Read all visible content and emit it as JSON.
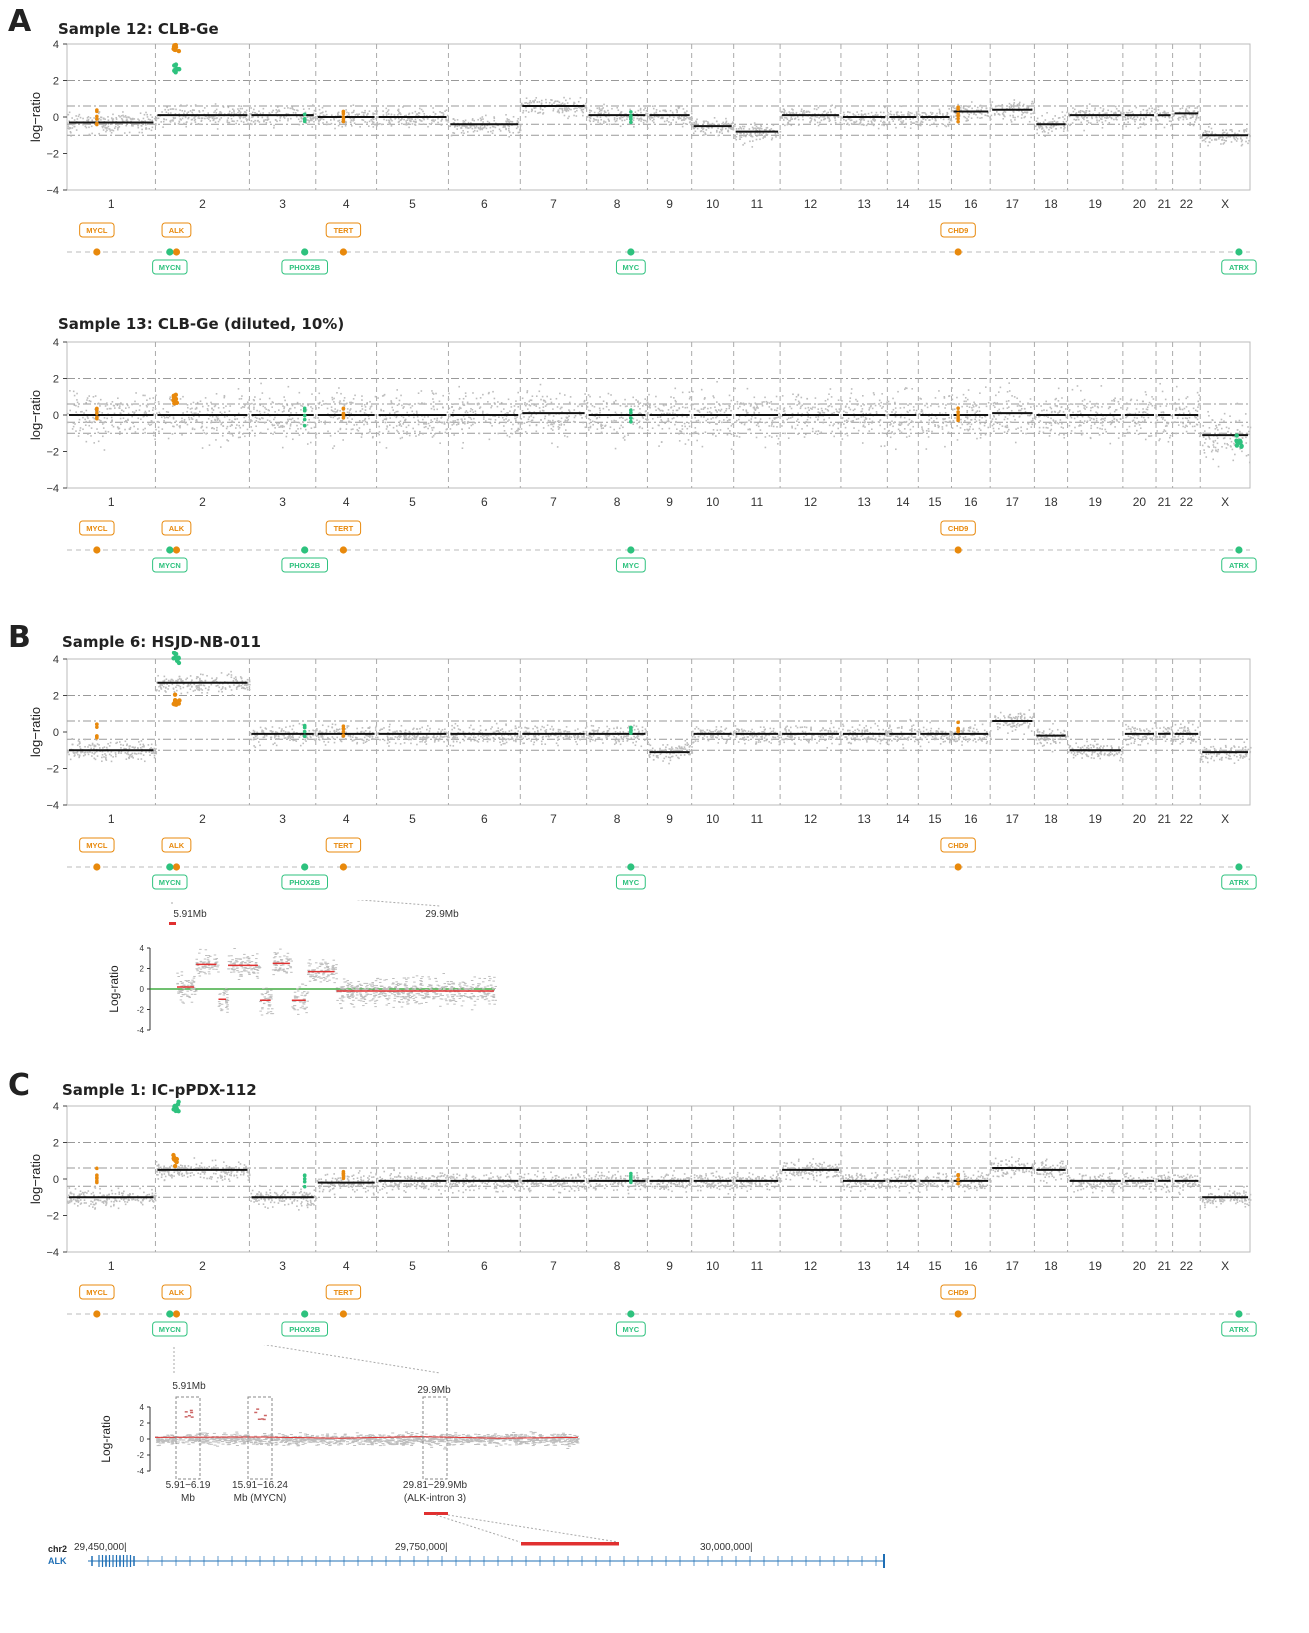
{
  "panels": {
    "a": "A",
    "b": "B",
    "c": "C"
  },
  "colors": {
    "amp": "#e8890c",
    "del": "#2ec27e",
    "point": "#bdbdbd",
    "segment": "#111111",
    "zoom_segment": "#e03030",
    "baseline": "#1a9a1a"
  },
  "genes": [
    {
      "name": "MYCL",
      "chrom": "1",
      "pos_mb": 40.4,
      "color": "orange"
    },
    {
      "name": "ALK",
      "chrom": "2",
      "pos_mb": 29.9,
      "color": "orange"
    },
    {
      "name": "MYCN",
      "chrom": "2",
      "pos_mb": 15.9,
      "color": "green"
    },
    {
      "name": "PHOX2B",
      "chrom": "4",
      "pos_mb": 41.7,
      "color": "green"
    },
    {
      "name": "TERT",
      "chrom": "5",
      "pos_mb": 1.3,
      "color": "orange"
    },
    {
      "name": "MYC",
      "chrom": "8",
      "pos_mb": 127.7,
      "color": "green"
    },
    {
      "name": "CHD9",
      "chrom": "16",
      "pos_mb": 53.1,
      "color": "orange"
    },
    {
      "name": "ATRX",
      "chrom": "X",
      "pos_mb": 77.5,
      "color": "green"
    }
  ],
  "chart_data": [
    {
      "type": "scatter",
      "title": "Sample 12: CLB-Ge",
      "ylabel": "log−ratio",
      "ylim": [
        -4,
        4
      ],
      "yticks": [
        "4",
        "2",
        "0",
        "−2",
        "−4"
      ],
      "chromosomes": [
        "1",
        "2",
        "3",
        "4",
        "5",
        "6",
        "7",
        "8",
        "9",
        "10",
        "11",
        "12",
        "13",
        "14",
        "15",
        "16",
        "17",
        "18",
        "19",
        "20",
        "21",
        "22",
        "X"
      ],
      "segments": [
        {
          "chrom": "1",
          "value": -0.3
        },
        {
          "chrom": "1b",
          "value": 0.6
        },
        {
          "chrom": "2",
          "value": 0.1
        },
        {
          "chrom": "3",
          "value": 0.1
        },
        {
          "chrom": "4",
          "value": 0
        },
        {
          "chrom": "5",
          "value": 0
        },
        {
          "chrom": "6",
          "value": -0.4
        },
        {
          "chrom": "7",
          "value": 0.6
        },
        {
          "chrom": "8",
          "value": 0.1
        },
        {
          "chrom": "9",
          "value": 0.1
        },
        {
          "chrom": "10",
          "value": -0.5
        },
        {
          "chrom": "11",
          "value": -0.8
        },
        {
          "chrom": "12",
          "value": 0.1
        },
        {
          "chrom": "13",
          "value": 0
        },
        {
          "chrom": "14",
          "value": 0
        },
        {
          "chrom": "15",
          "value": 0
        },
        {
          "chrom": "16",
          "value": 0.3
        },
        {
          "chrom": "17",
          "value": 0.4
        },
        {
          "chrom": "18",
          "value": -0.4
        },
        {
          "chrom": "19",
          "value": 0.1
        },
        {
          "chrom": "20",
          "value": 0.1
        },
        {
          "chrom": "21",
          "value": 0.1
        },
        {
          "chrom": "22",
          "value": 0.2
        },
        {
          "chrom": "X",
          "value": -1
        }
      ],
      "highlights": [
        {
          "chrom": "2",
          "value": 3.8,
          "color": "orange"
        },
        {
          "chrom": "2",
          "value": 2.5,
          "color": "green"
        }
      ]
    },
    {
      "type": "scatter",
      "title": "Sample 13: CLB-Ge (diluted, 10%)",
      "ylabel": "log−ratio",
      "ylim": [
        -4,
        4
      ],
      "yticks": [
        "4",
        "2",
        "0",
        "−2",
        "−4"
      ],
      "chromosomes": [
        "1",
        "2",
        "3",
        "4",
        "5",
        "6",
        "7",
        "8",
        "9",
        "10",
        "11",
        "12",
        "13",
        "14",
        "15",
        "16",
        "17",
        "18",
        "19",
        "20",
        "21",
        "22",
        "X"
      ],
      "segments": [
        {
          "chrom": "1",
          "value": 0
        },
        {
          "chrom": "2",
          "value": 0
        },
        {
          "chrom": "3",
          "value": 0
        },
        {
          "chrom": "4",
          "value": 0
        },
        {
          "chrom": "5",
          "value": 0
        },
        {
          "chrom": "6",
          "value": 0
        },
        {
          "chrom": "7",
          "value": 0.1
        },
        {
          "chrom": "8",
          "value": 0
        },
        {
          "chrom": "9",
          "value": 0
        },
        {
          "chrom": "10",
          "value": 0
        },
        {
          "chrom": "11",
          "value": 0
        },
        {
          "chrom": "12",
          "value": 0
        },
        {
          "chrom": "13",
          "value": 0
        },
        {
          "chrom": "14",
          "value": 0
        },
        {
          "chrom": "15",
          "value": 0
        },
        {
          "chrom": "16",
          "value": 0
        },
        {
          "chrom": "17",
          "value": 0.1
        },
        {
          "chrom": "18",
          "value": 0
        },
        {
          "chrom": "19",
          "value": 0
        },
        {
          "chrom": "20",
          "value": 0
        },
        {
          "chrom": "21",
          "value": 0
        },
        {
          "chrom": "22",
          "value": 0
        },
        {
          "chrom": "X",
          "value": -1.1
        }
      ],
      "highlights": [
        {
          "chrom": "2",
          "value": 0.8,
          "color": "orange"
        },
        {
          "chrom": "X",
          "value": -1.5,
          "color": "green"
        }
      ]
    },
    {
      "type": "scatter",
      "title": "Sample 6: HSJD-NB-011",
      "ylabel": "log−ratio",
      "ylim": [
        -4,
        4
      ],
      "yticks": [
        "4",
        "2",
        "0",
        "−2",
        "−4"
      ],
      "chromosomes": [
        "1",
        "2",
        "3",
        "4",
        "5",
        "6",
        "7",
        "8",
        "9",
        "10",
        "11",
        "12",
        "13",
        "14",
        "15",
        "16",
        "17",
        "18",
        "19",
        "20",
        "21",
        "22",
        "X"
      ],
      "segments": [
        {
          "chrom": "1",
          "value": -1
        },
        {
          "chrom": "1b",
          "value": 0.5
        },
        {
          "chrom": "2",
          "value": 2.7
        },
        {
          "chrom": "3",
          "value": -0.1
        },
        {
          "chrom": "4",
          "value": -0.1
        },
        {
          "chrom": "5",
          "value": -0.1
        },
        {
          "chrom": "6",
          "value": -0.1
        },
        {
          "chrom": "7",
          "value": -0.1
        },
        {
          "chrom": "8",
          "value": -0.1
        },
        {
          "chrom": "9",
          "value": -1.1
        },
        {
          "chrom": "10",
          "value": -0.1
        },
        {
          "chrom": "11",
          "value": -0.1
        },
        {
          "chrom": "12",
          "value": -0.1
        },
        {
          "chrom": "13",
          "value": -0.1
        },
        {
          "chrom": "14",
          "value": -0.1
        },
        {
          "chrom": "15",
          "value": -0.1
        },
        {
          "chrom": "16",
          "value": -0.1
        },
        {
          "chrom": "17",
          "value": 0.6
        },
        {
          "chrom": "18",
          "value": -0.2
        },
        {
          "chrom": "19",
          "value": -1
        },
        {
          "chrom": "20",
          "value": -0.1
        },
        {
          "chrom": "21",
          "value": -0.1
        },
        {
          "chrom": "22",
          "value": -0.1
        },
        {
          "chrom": "X",
          "value": -1.1
        }
      ],
      "highlights": [
        {
          "chrom": "2",
          "value": 1.8,
          "color": "orange"
        },
        {
          "chrom": "2",
          "value": 4,
          "color": "green"
        }
      ]
    },
    {
      "type": "scatter",
      "title": "Sample 1: IC-pPDX-112",
      "ylabel": "log−ratio",
      "ylim": [
        -4,
        4
      ],
      "yticks": [
        "4",
        "2",
        "0",
        "−2",
        "−4"
      ],
      "chromosomes": [
        "1",
        "2",
        "3",
        "4",
        "5",
        "6",
        "7",
        "8",
        "9",
        "10",
        "11",
        "12",
        "13",
        "14",
        "15",
        "16",
        "17",
        "18",
        "19",
        "20",
        "21",
        "22",
        "X"
      ],
      "segments": [
        {
          "chrom": "1",
          "value": -1
        },
        {
          "chrom": "1b",
          "value": -0.1
        },
        {
          "chrom": "2",
          "value": 0.5
        },
        {
          "chrom": "3",
          "value": -1
        },
        {
          "chrom": "4",
          "value": -0.2
        },
        {
          "chrom": "5",
          "value": -0.1
        },
        {
          "chrom": "6",
          "value": -0.1
        },
        {
          "chrom": "7",
          "value": -0.1
        },
        {
          "chrom": "8",
          "value": -0.1
        },
        {
          "chrom": "9",
          "value": -0.1
        },
        {
          "chrom": "10",
          "value": -0.1
        },
        {
          "chrom": "11",
          "value": -0.1
        },
        {
          "chrom": "12",
          "value": 0.5
        },
        {
          "chrom": "13",
          "value": -0.1
        },
        {
          "chrom": "14",
          "value": -0.1
        },
        {
          "chrom": "15",
          "value": -0.1
        },
        {
          "chrom": "16",
          "value": -0.1
        },
        {
          "chrom": "17",
          "value": 0.6
        },
        {
          "chrom": "18",
          "value": 0.5
        },
        {
          "chrom": "19",
          "value": -0.1
        },
        {
          "chrom": "20",
          "value": -0.1
        },
        {
          "chrom": "21",
          "value": -0.1
        },
        {
          "chrom": "22",
          "value": -0.1
        },
        {
          "chrom": "X",
          "value": -1
        }
      ],
      "highlights": [
        {
          "chrom": "2",
          "value": 1,
          "color": "orange"
        },
        {
          "chrom": "2",
          "value": 4,
          "color": "green"
        }
      ]
    },
    {
      "type": "scatter",
      "title": "",
      "ylabel": "Log-ratio",
      "ylim": [
        -4,
        4
      ],
      "yticks": [
        "4",
        "2",
        "0",
        "-2",
        "-4"
      ],
      "region_start_label": "5.91Mb",
      "region_end_label": "29.9Mb",
      "segments": [
        {
          "x": 0.05,
          "value": 0.2
        },
        {
          "x": 0.12,
          "value": 2.4
        },
        {
          "x": 0.2,
          "value": -1
        },
        {
          "x": 0.28,
          "value": 2.3
        },
        {
          "x": 0.35,
          "value": -1.1
        },
        {
          "x": 0.38,
          "value": 2.5
        },
        {
          "x": 0.44,
          "value": -1.1
        },
        {
          "x": 0.5,
          "value": 1.7
        },
        {
          "x": 0.75,
          "value": -0.2
        }
      ]
    },
    {
      "type": "scatter",
      "title": "",
      "ylabel": "Log-ratio",
      "ylim": [
        -4,
        4
      ],
      "yticks": [
        "4",
        "2",
        "0",
        "-2",
        "-4"
      ],
      "region_start_label": "5.91Mb",
      "region_end_label": "29.9Mb",
      "boxes": [
        {
          "label_line1": "5.91−6.19",
          "label_line2": "Mb"
        },
        {
          "label_line1": "15.91−16.24",
          "label_line2": "Mb (MYCN)"
        },
        {
          "label_line1": "29.81−29.9Mb",
          "label_line2": "(ALK-intron 3)"
        }
      ]
    },
    {
      "type": "table",
      "track_chrom": "chr2",
      "track_gene": "ALK",
      "ticks": [
        "29,450,000|",
        "29,750,000|",
        "30,000,000|"
      ]
    }
  ]
}
